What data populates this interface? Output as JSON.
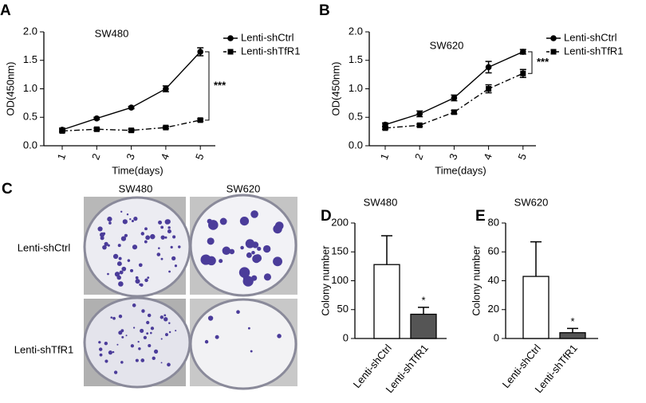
{
  "chart_data": [
    {
      "type": "line",
      "panel_label": "A",
      "title": "SW480",
      "x_label": "Time(days)",
      "y_label": "OD(450nm)",
      "categories": [
        "1",
        "2",
        "3",
        "4",
        "5"
      ],
      "series": [
        {
          "name": "Lenti-shCtrl",
          "color": "#000000",
          "marker": "circle",
          "dashed": false,
          "values": [
            0.28,
            0.48,
            0.67,
            1.0,
            1.65
          ],
          "errors": [
            0.03,
            0.02,
            0.02,
            0.05,
            0.07
          ]
        },
        {
          "name": "Lenti-shTfR1",
          "color": "#000000",
          "marker": "square",
          "dashed": true,
          "values": [
            0.26,
            0.29,
            0.27,
            0.32,
            0.45
          ],
          "errors": [
            0.02,
            0.02,
            0.02,
            0.02,
            0.02
          ]
        }
      ],
      "ylim": [
        0,
        2
      ],
      "yticks": [
        {
          "value": 0,
          "label": "0.0"
        },
        0.5,
        {
          "value": 1,
          "label": "1.0"
        },
        1.5,
        {
          "value": 2,
          "label": "2.0"
        }
      ],
      "significance": "***",
      "legend": "upper right"
    },
    {
      "type": "line",
      "panel_label": "B",
      "title": "SW620",
      "x_label": "Time(days)",
      "y_label": "OD(450nm)",
      "categories": [
        "1",
        "2",
        "3",
        "4",
        "5"
      ],
      "series": [
        {
          "name": "Lenti-shCtrl",
          "color": "#000000",
          "marker": "circle",
          "dashed": false,
          "values": [
            0.37,
            0.56,
            0.84,
            1.38,
            1.65
          ],
          "errors": [
            0.03,
            0.05,
            0.05,
            0.1,
            0.04
          ]
        },
        {
          "name": "Lenti-shTfR1",
          "color": "#000000",
          "marker": "square",
          "dashed": true,
          "values": [
            0.31,
            0.36,
            0.59,
            1.0,
            1.27
          ],
          "errors": [
            0.02,
            0.02,
            0.03,
            0.07,
            0.07
          ]
        }
      ],
      "ylim": [
        0,
        2
      ],
      "yticks": [
        {
          "value": 0,
          "label": "0.0"
        },
        0.5,
        {
          "value": 1,
          "label": "1.0"
        },
        1.5,
        {
          "value": 2,
          "label": "2.0"
        }
      ],
      "significance": "***",
      "legend": "upper right"
    },
    {
      "type": "bar",
      "panel_label": "D",
      "title": "SW480",
      "y_label": "Colony number",
      "categories": [
        "Lenti-shCtrl",
        "Lenti-shTfR1"
      ],
      "values": [
        128,
        42
      ],
      "errors": [
        50,
        12
      ],
      "colors": [
        "#ffffff",
        "#555555"
      ],
      "ylim": [
        0,
        200
      ],
      "yticks": [
        0,
        50,
        100,
        150,
        200
      ],
      "significance": "*"
    },
    {
      "type": "bar",
      "panel_label": "E",
      "title": "SW620",
      "y_label": "Colony number",
      "categories": [
        "Lenti-shCtrl",
        "Lenti-shTfR1"
      ],
      "values": [
        43,
        4
      ],
      "errors": [
        24,
        3
      ],
      "colors": [
        "#ffffff",
        "#555555"
      ],
      "ylim": [
        0,
        80
      ],
      "yticks": [
        0,
        20,
        40,
        60,
        80
      ],
      "significance": "*"
    }
  ],
  "panel_c": {
    "panel_label": "C",
    "columns": [
      "SW480",
      "SW620"
    ],
    "rows": [
      "Lenti-shCtrl",
      "Lenti-shTfR1"
    ]
  }
}
